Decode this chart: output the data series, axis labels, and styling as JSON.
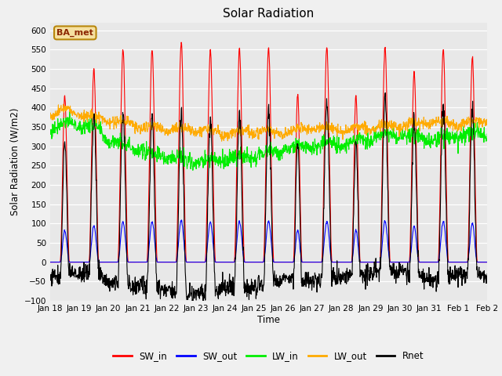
{
  "title": "Solar Radiation",
  "xlabel": "Time",
  "ylabel": "Solar Radiation (W/m2)",
  "ylim": [
    -100,
    620
  ],
  "fig_bg": "#f0f0f0",
  "plot_bg": "#e8e8e8",
  "annotation_text": "BA_met",
  "SW_in_color": "#ff0000",
  "SW_out_color": "#0000ff",
  "LW_in_color": "#00ee00",
  "LW_out_color": "#ffaa00",
  "Rnet_color": "#000000",
  "line_width": 0.8,
  "title_fontsize": 11,
  "tick_fontsize": 7.5,
  "label_fontsize": 8.5,
  "tick_labels": [
    "Jan 18",
    "Jan 19",
    "Jan 20",
    "Jan 21",
    "Jan 22",
    "Jan 23",
    "Jan 24",
    "Jan 25",
    "Jan 26",
    "Jan 27",
    "Jan 28",
    "Jan 29",
    "Jan 30",
    "Jan 31",
    "Feb 1",
    "Feb 2"
  ],
  "yticks": [
    -100,
    -50,
    0,
    50,
    100,
    150,
    200,
    250,
    300,
    350,
    400,
    450,
    500,
    550,
    600
  ],
  "n_days": 16,
  "SW_peaks": [
    430,
    500,
    550,
    550,
    570,
    550,
    550,
    555,
    435,
    555,
    430,
    555,
    490,
    550,
    530,
    0
  ],
  "SW_widths": [
    0.16,
    0.17,
    0.18,
    0.18,
    0.18,
    0.18,
    0.18,
    0.18,
    0.15,
    0.18,
    0.15,
    0.18,
    0.17,
    0.18,
    0.17,
    0.1
  ]
}
